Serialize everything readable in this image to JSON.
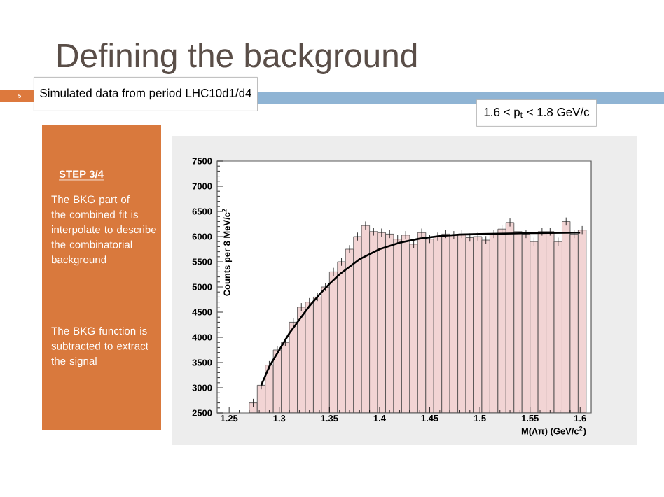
{
  "chart_data": {
    "type": "histogram",
    "title": "Defining the background",
    "xlabel": "M(Λπ) (GeV/c$^{2}$)",
    "ylabel": "Counts per 8 MeV/c$^{2}$",
    "annotations": [
      "5",
      "Simulated data from period LHC10d1/d4",
      "1.6 < p$_{t}$ < 1.8 GeV/c",
      "STEP 3/4",
      "The BKG part of the combined fit is interpolate to describe the combinatorial background",
      "The BKG function is subtracted to extract the signal"
    ],
    "xlim": [
      1.238,
      1.611
    ],
    "ylim": [
      2500,
      7500
    ],
    "xticks": [
      1.25,
      1.3,
      1.35,
      1.4,
      1.45,
      1.5,
      1.55,
      1.6
    ],
    "yticks": [
      2500,
      3000,
      3500,
      4000,
      4500,
      5000,
      5500,
      6000,
      6500,
      7000,
      7500
    ],
    "series": [
      {
        "color": "#f2d4d4",
        "bins": [
          1.27,
          1.278,
          1.286,
          1.294,
          1.302,
          1.31,
          1.318,
          1.326,
          1.334,
          1.342,
          1.35,
          1.358,
          1.366,
          1.374,
          1.382,
          1.39,
          1.398,
          1.406,
          1.414,
          1.422,
          1.43,
          1.438,
          1.446,
          1.454,
          1.462,
          1.47,
          1.478,
          1.486,
          1.494,
          1.502,
          1.51,
          1.518,
          1.526,
          1.534,
          1.542,
          1.55,
          1.558,
          1.566,
          1.574,
          1.582,
          1.59,
          1.598,
          1.606
        ],
        "values": [
          2700,
          3050,
          3450,
          3750,
          3900,
          4300,
          4600,
          4700,
          4800,
          5000,
          5300,
          5500,
          5750,
          6000,
          6220,
          6100,
          6080,
          6050,
          5950,
          6030,
          5850,
          6080,
          5950,
          6000,
          6050,
          6030,
          6050,
          5980,
          6000,
          5930,
          6050,
          6150,
          6280,
          6100,
          6050,
          5900,
          6100,
          6100,
          5900,
          6300,
          6050,
          6130
        ],
        "errors": [
          80,
          80,
          80,
          80,
          80,
          80,
          80,
          80,
          80,
          80,
          80,
          80,
          80,
          80,
          80,
          80,
          80,
          80,
          80,
          80,
          80,
          80,
          80,
          80,
          80,
          80,
          80,
          80,
          80,
          80,
          80,
          80,
          80,
          80,
          80,
          80,
          80,
          80,
          80,
          80,
          80,
          80
        ]
      },
      {
        "type": "line",
        "color": "#000000",
        "x": [
          1.282,
          1.29,
          1.3,
          1.31,
          1.32,
          1.33,
          1.34,
          1.35,
          1.36,
          1.38,
          1.4,
          1.42,
          1.44,
          1.46,
          1.48,
          1.5,
          1.55,
          1.6
        ],
        "values": [
          3050,
          3420,
          3750,
          4080,
          4350,
          4620,
          4850,
          5060,
          5250,
          5550,
          5750,
          5880,
          5960,
          6010,
          6040,
          6050,
          6070,
          6080
        ]
      }
    ]
  }
}
